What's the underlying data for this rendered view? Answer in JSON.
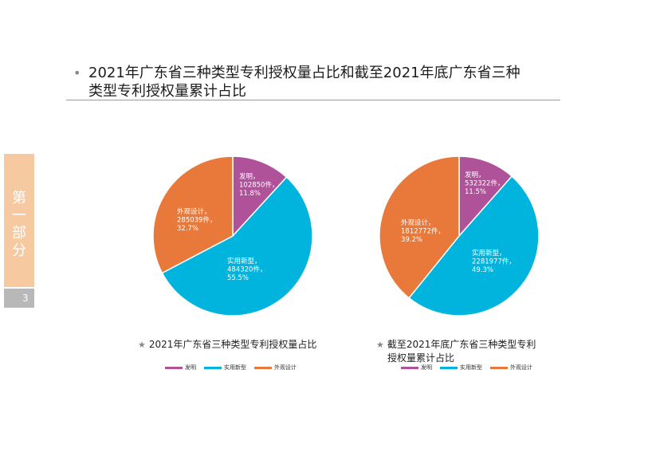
{
  "header": {
    "title_line1": "2021年广东省三种类型专利授权量占比和截至2021年底广东省三种",
    "title_line2": "类型专利授权量累计占比",
    "bullet": "•"
  },
  "sidebar": {
    "chars": [
      "第",
      "一",
      "部",
      "分"
    ],
    "page_number": "3"
  },
  "colors": {
    "invention": "#b0529a",
    "utility": "#00b4de",
    "design": "#e8793a"
  },
  "chart_data": [
    {
      "type": "pie",
      "caption": "2021年广东省三种类型专利授权量占比",
      "legend": [
        "发明",
        "实用新型",
        "外观设计"
      ],
      "slices": [
        {
          "name": "发明",
          "value": 102850,
          "value_label": "102850件，",
          "percent": "11.8%"
        },
        {
          "name": "实用新型",
          "value": 484320,
          "value_label": "484320件，",
          "percent": "55.5%"
        },
        {
          "name": "外观设计",
          "value": 285039,
          "value_label": "285039件，",
          "percent": "32.7%"
        }
      ]
    },
    {
      "type": "pie",
      "caption_line1": "截至2021年底广东省三种类型专利",
      "caption_line2": "授权量累计占比",
      "legend": [
        "发明",
        "实用新型",
        "外观设计"
      ],
      "slices": [
        {
          "name": "发明",
          "value": 532322,
          "value_label": "532322件，",
          "percent": "11.5%"
        },
        {
          "name": "实用新型",
          "value": 2281977,
          "value_label": "2281977件，",
          "percent": "49.3%"
        },
        {
          "name": "外观设计",
          "value": 1812772,
          "value_label": "1812772件，",
          "percent": "39.2%"
        }
      ]
    }
  ]
}
